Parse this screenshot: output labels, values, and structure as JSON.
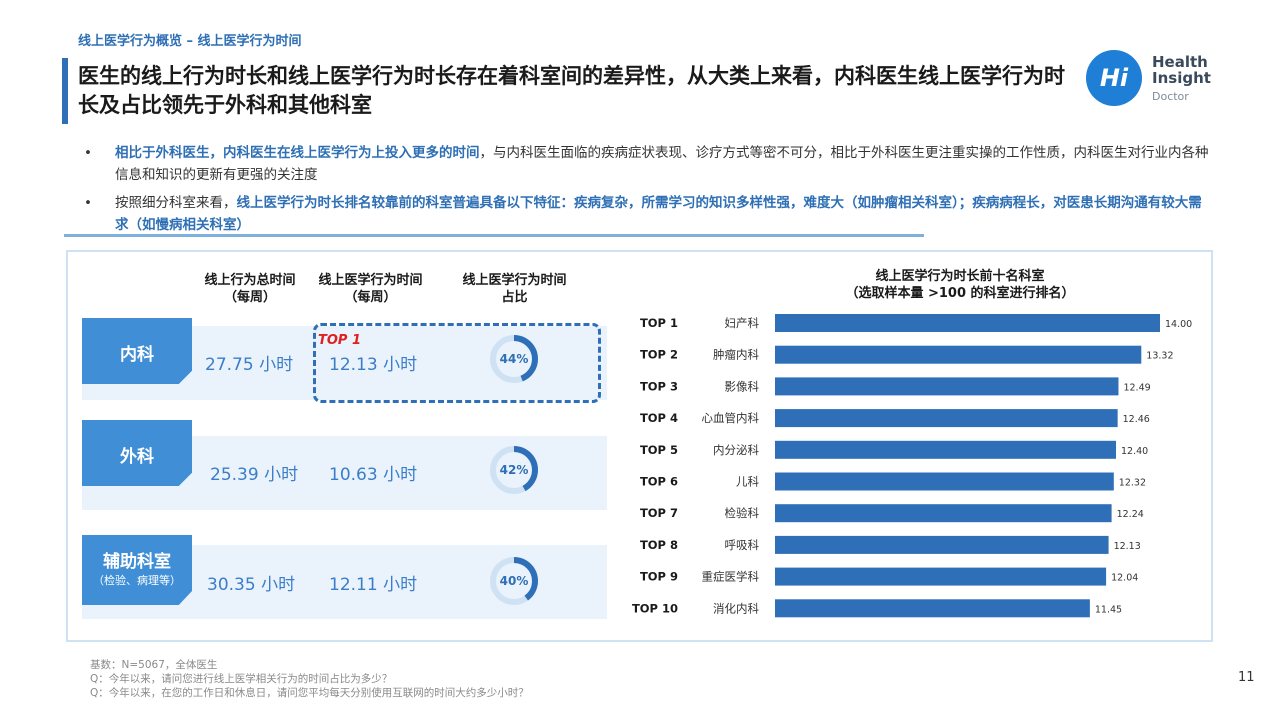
{
  "breadcrumb": "线上医学行为概览 – 线上医学行为时间",
  "title": "医生的线上行为时长和线上医学行为时长存在着科室间的差异性，从大类上来看，内科医生线上医学行为时长及占比领先于外科和其他科室",
  "logo": {
    "mark": "Hi",
    "line1": "Health",
    "line2": "Insight",
    "sub": "Doctor",
    "color": "#1f7fd6"
  },
  "bullets": [
    {
      "dot": "•",
      "highlight": "相比于外科医生，内科医生在线上医学行为上投入更多的时间",
      "text": "，与内科医生面临的疾病症状表现、诊疗方式等密不可分，相比于外科医生更注重实操的工作性质，内科医生对行业内各种信息和知识的更新有更强的关注度"
    },
    {
      "dot": "•",
      "prefix": "按照细分科室来看，",
      "highlight": "线上医学行为时长排名较靠前的科室普遍具备以下特征：疾病复杂，所需学习的知识多样性强，难度大（如肿瘤相关科室）；疾病病程长，对医患长期沟通有较大需求（如慢病相关科室）"
    }
  ],
  "table": {
    "headers": [
      {
        "line1": "线上行为总时间",
        "line2": "（每周）"
      },
      {
        "line1": "线上医学行为时间",
        "line2": "（每周）"
      },
      {
        "line1": "线上医学行为时间",
        "line2": "占比"
      }
    ],
    "top1_tag": "TOP 1",
    "rows": [
      {
        "label": "内科",
        "sub": "",
        "total": "27.75 小时",
        "medical": "12.13 小时",
        "share": 44,
        "share_label": "44%"
      },
      {
        "label": "外科",
        "sub": "",
        "total": "25.39 小时",
        "medical": "10.63 小时",
        "share": 42,
        "share_label": "42%"
      },
      {
        "label": "辅助科室",
        "sub": "（检验、病理等）",
        "total": "30.35 小时",
        "medical": "12.11 小时",
        "share": 40,
        "share_label": "40%"
      }
    ]
  },
  "chart_data": {
    "type": "bar",
    "orientation": "horizontal",
    "title": "线上医学行为时长前十名科室",
    "subtitle": "（选取样本量 >100 的科室进行排名）",
    "ranks": [
      "TOP 1",
      "TOP 2",
      "TOP 3",
      "TOP 4",
      "TOP 5",
      "TOP 6",
      "TOP 7",
      "TOP 8",
      "TOP 9",
      "TOP 10"
    ],
    "categories": [
      "妇产科",
      "肿瘤内科",
      "影像科",
      "心血管内科",
      "内分泌科",
      "儿科",
      "检验科",
      "呼吸科",
      "重症医学科",
      "消化内科"
    ],
    "values": [
      14.0,
      13.32,
      12.49,
      12.46,
      12.4,
      12.32,
      12.24,
      12.13,
      12.04,
      11.45
    ],
    "value_labels": [
      "14.00",
      "13.32",
      "12.49",
      "12.46",
      "12.40",
      "12.32",
      "12.24",
      "12.13",
      "12.04",
      "11.45"
    ],
    "xlim": [
      0,
      14
    ],
    "grid": false,
    "bar_color": "#2f6fb8"
  },
  "footnote": [
    "基数：N=5067，全体医生",
    "Q：今年以来，请问您进行线上医学相关行为的时间占比为多少？",
    "Q：今年以来，在您的工作日和休息日，请问您平均每天分别使用互联网的时间大约多少小时？"
  ],
  "page_number": "11"
}
